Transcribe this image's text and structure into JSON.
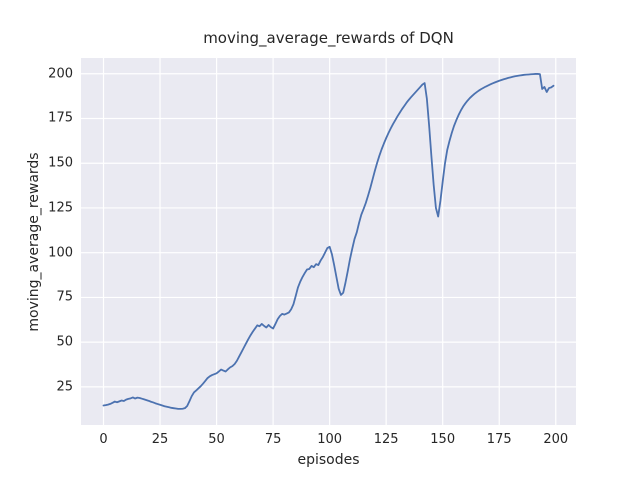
{
  "chart_data": {
    "type": "line",
    "title": "moving_average_rewards of DQN",
    "xlabel": "episodes",
    "ylabel": "moving_average_rewards",
    "xticks": [
      0,
      25,
      50,
      75,
      100,
      125,
      150,
      175,
      200
    ],
    "yticks": [
      25,
      50,
      75,
      100,
      125,
      150,
      175,
      200
    ],
    "xlim": [
      -9.95,
      208.95
    ],
    "ylim": [
      3.7,
      208.8
    ],
    "grid": true,
    "legend_position": "none",
    "plot_bg": "#EAEAF2",
    "grid_color": "#FFFFFF",
    "text_color": "#262626",
    "series": [
      {
        "name": "moving_average_rewards",
        "color": "#4C72B0",
        "line_width": 1.8,
        "points": [
          [
            0,
            14.6
          ],
          [
            1,
            14.8
          ],
          [
            2,
            15.1
          ],
          [
            3,
            15.5
          ],
          [
            4,
            16.1
          ],
          [
            5,
            16.8
          ],
          [
            6,
            16.4
          ],
          [
            7,
            16.9
          ],
          [
            8,
            17.4
          ],
          [
            9,
            17.1
          ],
          [
            10,
            17.9
          ],
          [
            11,
            18.3
          ],
          [
            12,
            18.6
          ],
          [
            13,
            19.1
          ],
          [
            14,
            18.5
          ],
          [
            15,
            19.0
          ],
          [
            16,
            18.8
          ],
          [
            17,
            18.4
          ],
          [
            18,
            18.0
          ],
          [
            19,
            17.6
          ],
          [
            20,
            17.2
          ],
          [
            21,
            16.7
          ],
          [
            22,
            16.3
          ],
          [
            23,
            15.8
          ],
          [
            24,
            15.4
          ],
          [
            25,
            15.0
          ],
          [
            26,
            14.6
          ],
          [
            27,
            14.2
          ],
          [
            28,
            13.9
          ],
          [
            29,
            13.6
          ],
          [
            30,
            13.3
          ],
          [
            31,
            13.1
          ],
          [
            32,
            12.9
          ],
          [
            33,
            12.7
          ],
          [
            34,
            12.7
          ],
          [
            35,
            12.8
          ],
          [
            36,
            13.1
          ],
          [
            37,
            14.3
          ],
          [
            38,
            17.0
          ],
          [
            39,
            19.8
          ],
          [
            40,
            21.9
          ],
          [
            41,
            23.0
          ],
          [
            42,
            24.2
          ],
          [
            43,
            25.4
          ],
          [
            44,
            26.8
          ],
          [
            45,
            28.3
          ],
          [
            46,
            29.9
          ],
          [
            47,
            30.9
          ],
          [
            48,
            31.6
          ],
          [
            49,
            32.1
          ],
          [
            50,
            32.6
          ],
          [
            51,
            33.6
          ],
          [
            52,
            34.7
          ],
          [
            53,
            34.1
          ],
          [
            54,
            33.6
          ],
          [
            55,
            34.8
          ],
          [
            56,
            35.9
          ],
          [
            57,
            36.6
          ],
          [
            58,
            37.8
          ],
          [
            59,
            39.6
          ],
          [
            60,
            42.0
          ],
          [
            61,
            44.4
          ],
          [
            62,
            46.8
          ],
          [
            63,
            49.2
          ],
          [
            64,
            51.6
          ],
          [
            65,
            53.8
          ],
          [
            66,
            55.8
          ],
          [
            67,
            57.6
          ],
          [
            68,
            59.4
          ],
          [
            69,
            58.9
          ],
          [
            70,
            60.2
          ],
          [
            71,
            59.1
          ],
          [
            72,
            58.2
          ],
          [
            73,
            59.6
          ],
          [
            74,
            58.4
          ],
          [
            75,
            57.6
          ],
          [
            76,
            60.1
          ],
          [
            77,
            62.8
          ],
          [
            78,
            64.6
          ],
          [
            79,
            65.8
          ],
          [
            80,
            65.4
          ],
          [
            81,
            66.0
          ],
          [
            82,
            66.6
          ],
          [
            83,
            68.4
          ],
          [
            84,
            71.2
          ],
          [
            85,
            75.8
          ],
          [
            86,
            80.6
          ],
          [
            87,
            83.8
          ],
          [
            88,
            86.4
          ],
          [
            89,
            88.6
          ],
          [
            90,
            90.6
          ],
          [
            91,
            90.9
          ],
          [
            92,
            92.6
          ],
          [
            93,
            91.9
          ],
          [
            94,
            93.6
          ],
          [
            95,
            93.1
          ],
          [
            96,
            95.6
          ],
          [
            97,
            97.6
          ],
          [
            98,
            100.1
          ],
          [
            99,
            102.6
          ],
          [
            100,
            103.3
          ],
          [
            101,
            99.2
          ],
          [
            102,
            93.1
          ],
          [
            103,
            86.4
          ],
          [
            104,
            79.8
          ],
          [
            105,
            76.4
          ],
          [
            106,
            77.6
          ],
          [
            107,
            83.2
          ],
          [
            108,
            89.6
          ],
          [
            109,
            96.4
          ],
          [
            110,
            102.2
          ],
          [
            111,
            107.6
          ],
          [
            112,
            111.4
          ],
          [
            113,
            116.6
          ],
          [
            114,
            121.2
          ],
          [
            115,
            124.4
          ],
          [
            116,
            127.8
          ],
          [
            117,
            131.9
          ],
          [
            118,
            136.2
          ],
          [
            119,
            141.0
          ],
          [
            120,
            145.8
          ],
          [
            121,
            150.2
          ],
          [
            122,
            154.2
          ],
          [
            123,
            157.8
          ],
          [
            124,
            161.0
          ],
          [
            125,
            164.0
          ],
          [
            126,
            166.8
          ],
          [
            127,
            169.4
          ],
          [
            128,
            171.8
          ],
          [
            129,
            174.0
          ],
          [
            130,
            176.2
          ],
          [
            131,
            178.2
          ],
          [
            132,
            180.2
          ],
          [
            133,
            182.0
          ],
          [
            134,
            183.8
          ],
          [
            135,
            185.4
          ],
          [
            136,
            186.9
          ],
          [
            137,
            188.3
          ],
          [
            138,
            189.7
          ],
          [
            139,
            191.1
          ],
          [
            140,
            192.5
          ],
          [
            141,
            193.9
          ],
          [
            142,
            194.8
          ],
          [
            143,
            186.0
          ],
          [
            144,
            171.0
          ],
          [
            145,
            154.0
          ],
          [
            146,
            138.0
          ],
          [
            147,
            125.0
          ],
          [
            148,
            120.2
          ],
          [
            149,
            129.0
          ],
          [
            150,
            139.8
          ],
          [
            151,
            149.8
          ],
          [
            152,
            157.4
          ],
          [
            153,
            162.4
          ],
          [
            154,
            166.9
          ],
          [
            155,
            170.8
          ],
          [
            156,
            174.0
          ],
          [
            157,
            176.9
          ],
          [
            158,
            179.4
          ],
          [
            159,
            181.6
          ],
          [
            160,
            183.4
          ],
          [
            161,
            185.0
          ],
          [
            162,
            186.4
          ],
          [
            163,
            187.6
          ],
          [
            164,
            188.7
          ],
          [
            165,
            189.7
          ],
          [
            166,
            190.6
          ],
          [
            167,
            191.4
          ],
          [
            168,
            192.1
          ],
          [
            169,
            192.8
          ],
          [
            170,
            193.4
          ],
          [
            171,
            194.0
          ],
          [
            172,
            194.6
          ],
          [
            173,
            195.1
          ],
          [
            174,
            195.6
          ],
          [
            175,
            196.1
          ],
          [
            176,
            196.5
          ],
          [
            177,
            196.9
          ],
          [
            178,
            197.3
          ],
          [
            179,
            197.7
          ],
          [
            180,
            198.0
          ],
          [
            181,
            198.3
          ],
          [
            182,
            198.6
          ],
          [
            183,
            198.8
          ],
          [
            184,
            199.0
          ],
          [
            185,
            199.2
          ],
          [
            186,
            199.4
          ],
          [
            187,
            199.5
          ],
          [
            188,
            199.6
          ],
          [
            189,
            199.7
          ],
          [
            190,
            199.8
          ],
          [
            191,
            199.9
          ],
          [
            192,
            199.9
          ],
          [
            193,
            199.8
          ],
          [
            194,
            191.5
          ],
          [
            195,
            192.6
          ],
          [
            196,
            189.8
          ],
          [
            197,
            192.0
          ],
          [
            198,
            192.4
          ],
          [
            199,
            193.3
          ]
        ]
      }
    ]
  }
}
